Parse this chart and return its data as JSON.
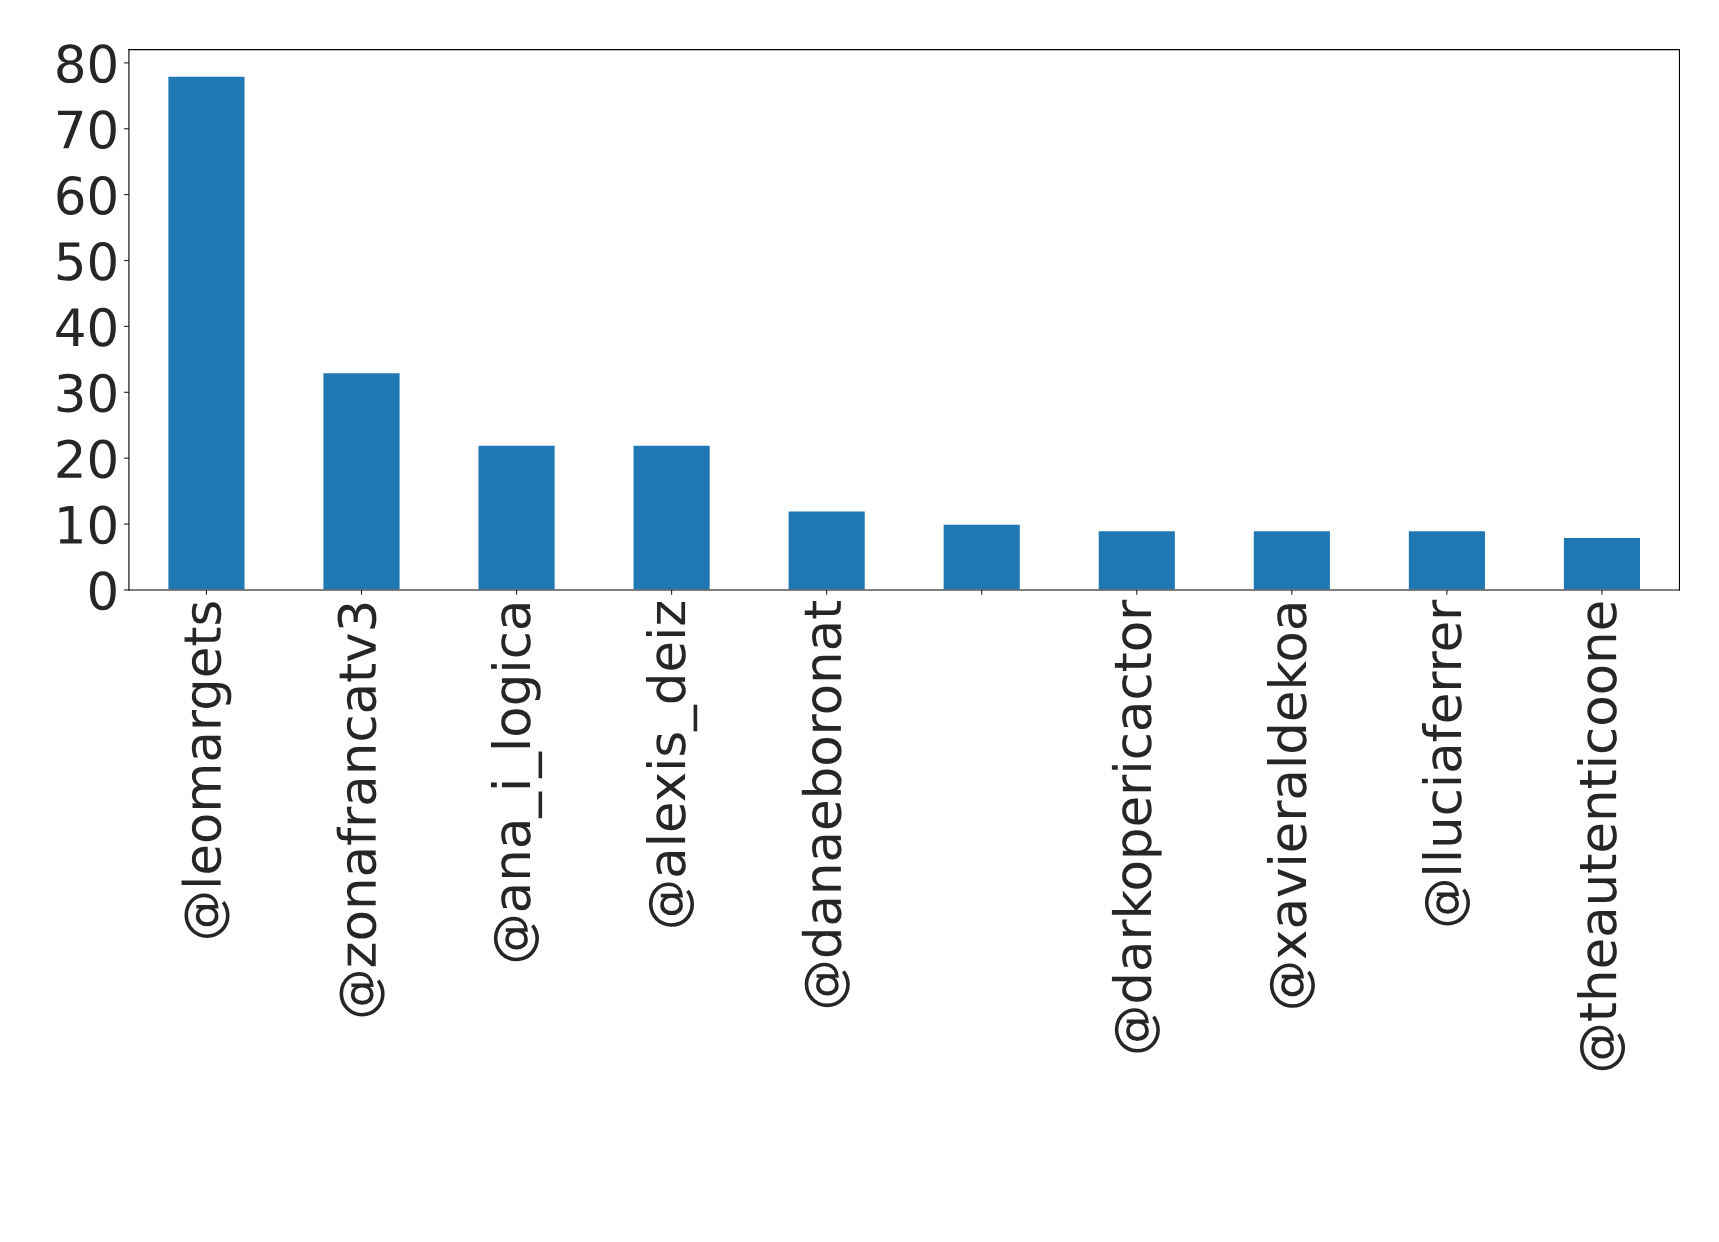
{
  "chart_data": {
    "type": "bar",
    "categories": [
      "@leomargets",
      "@zonafrancatv3",
      "@ana_i_logica",
      "@alexis_deiz",
      "@danaeboronat",
      null,
      "@darkopericactor",
      "@xavieraldekoa",
      "@lluciaferrer",
      "@theautenticoone"
    ],
    "values": [
      78,
      33,
      22,
      22,
      12,
      10,
      9,
      9,
      9,
      8
    ],
    "color": "#1f77b4",
    "ylim": [
      0,
      82
    ],
    "yticks": [
      0,
      10,
      20,
      30,
      40,
      50,
      60,
      70,
      80
    ],
    "grid": false,
    "legend": false
  }
}
